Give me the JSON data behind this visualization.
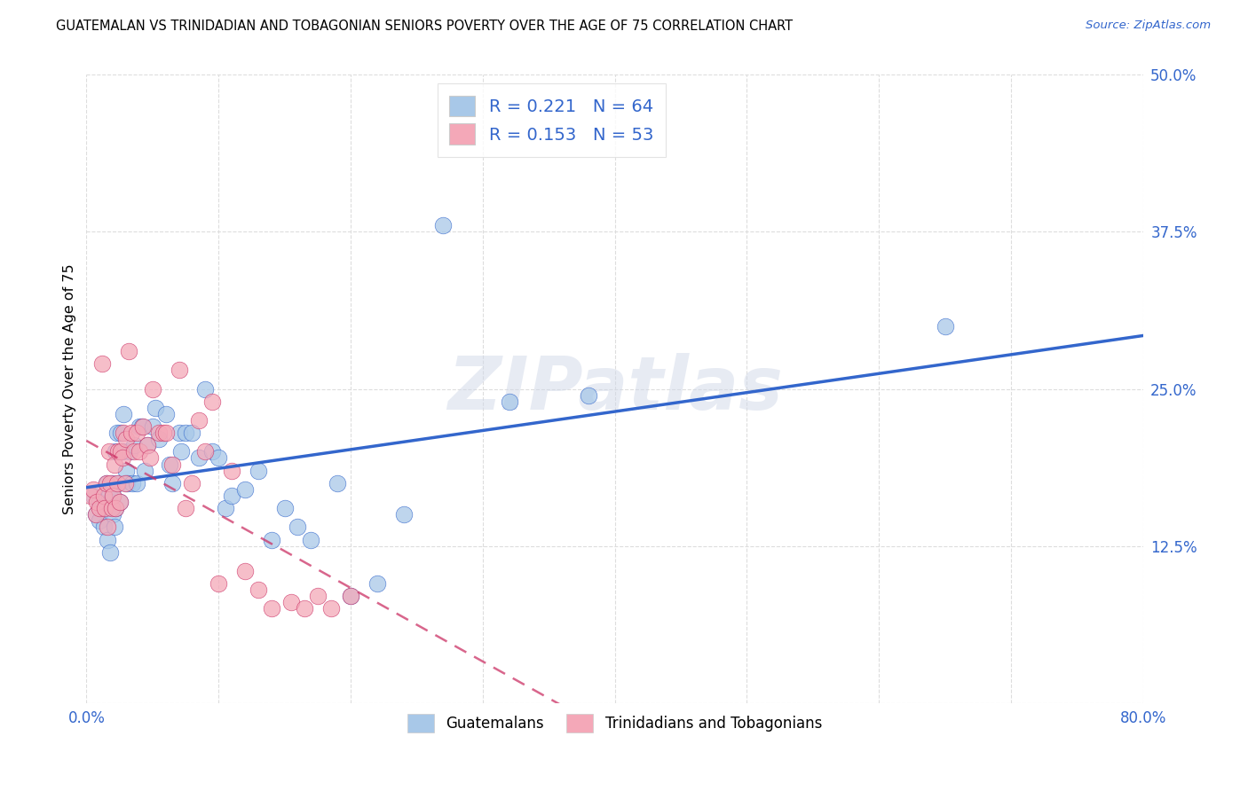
{
  "title": "GUATEMALAN VS TRINIDADIAN AND TOBAGONIAN SENIORS POVERTY OVER THE AGE OF 75 CORRELATION CHART",
  "source": "Source: ZipAtlas.com",
  "ylabel": "Seniors Poverty Over the Age of 75",
  "xlim": [
    0.0,
    0.8
  ],
  "ylim": [
    0.0,
    0.5
  ],
  "yticks": [
    0.0,
    0.125,
    0.25,
    0.375,
    0.5
  ],
  "yticklabels": [
    "",
    "12.5%",
    "25.0%",
    "37.5%",
    "50.0%"
  ],
  "xticks": [
    0.0,
    0.1,
    0.2,
    0.3,
    0.4,
    0.5,
    0.6,
    0.7,
    0.8
  ],
  "xticklabels": [
    "0.0%",
    "",
    "",
    "",
    "",
    "",
    "",
    "",
    "80.0%"
  ],
  "legend_label1": "Guatemalans",
  "legend_label2": "Trinidadians and Tobagonians",
  "r1": 0.221,
  "n1": 64,
  "r2": 0.153,
  "n2": 53,
  "color1": "#a8c8e8",
  "color2": "#f4a8b8",
  "color1_line": "#3366cc",
  "color2_line": "#cc3366",
  "watermark": "ZIPatlas",
  "blue_scatter_x": [
    0.005,
    0.007,
    0.01,
    0.01,
    0.012,
    0.013,
    0.015,
    0.016,
    0.016,
    0.017,
    0.018,
    0.018,
    0.019,
    0.02,
    0.02,
    0.021,
    0.022,
    0.022,
    0.023,
    0.024,
    0.025,
    0.026,
    0.027,
    0.028,
    0.03,
    0.031,
    0.033,
    0.035,
    0.036,
    0.038,
    0.04,
    0.042,
    0.044,
    0.046,
    0.05,
    0.052,
    0.055,
    0.06,
    0.063,
    0.065,
    0.07,
    0.072,
    0.075,
    0.08,
    0.085,
    0.09,
    0.095,
    0.1,
    0.105,
    0.11,
    0.12,
    0.13,
    0.14,
    0.15,
    0.16,
    0.17,
    0.19,
    0.2,
    0.22,
    0.24,
    0.27,
    0.32,
    0.38,
    0.65
  ],
  "blue_scatter_y": [
    0.165,
    0.15,
    0.16,
    0.145,
    0.155,
    0.14,
    0.175,
    0.155,
    0.13,
    0.165,
    0.12,
    0.16,
    0.175,
    0.15,
    0.165,
    0.14,
    0.2,
    0.155,
    0.215,
    0.175,
    0.16,
    0.215,
    0.2,
    0.23,
    0.185,
    0.175,
    0.2,
    0.175,
    0.205,
    0.175,
    0.22,
    0.22,
    0.185,
    0.205,
    0.22,
    0.235,
    0.21,
    0.23,
    0.19,
    0.175,
    0.215,
    0.2,
    0.215,
    0.215,
    0.195,
    0.25,
    0.2,
    0.195,
    0.155,
    0.165,
    0.17,
    0.185,
    0.13,
    0.155,
    0.14,
    0.13,
    0.175,
    0.085,
    0.095,
    0.15,
    0.38,
    0.24,
    0.245,
    0.3
  ],
  "pink_scatter_x": [
    0.003,
    0.005,
    0.007,
    0.008,
    0.01,
    0.012,
    0.013,
    0.014,
    0.015,
    0.016,
    0.017,
    0.018,
    0.019,
    0.02,
    0.021,
    0.022,
    0.023,
    0.024,
    0.025,
    0.026,
    0.027,
    0.028,
    0.029,
    0.03,
    0.032,
    0.034,
    0.036,
    0.038,
    0.04,
    0.043,
    0.046,
    0.048,
    0.05,
    0.055,
    0.058,
    0.06,
    0.065,
    0.07,
    0.075,
    0.08,
    0.085,
    0.09,
    0.095,
    0.1,
    0.11,
    0.12,
    0.13,
    0.14,
    0.155,
    0.165,
    0.175,
    0.185,
    0.2
  ],
  "pink_scatter_y": [
    0.165,
    0.17,
    0.15,
    0.16,
    0.155,
    0.27,
    0.165,
    0.155,
    0.175,
    0.14,
    0.2,
    0.175,
    0.155,
    0.165,
    0.19,
    0.155,
    0.175,
    0.2,
    0.16,
    0.2,
    0.195,
    0.215,
    0.175,
    0.21,
    0.28,
    0.215,
    0.2,
    0.215,
    0.2,
    0.22,
    0.205,
    0.195,
    0.25,
    0.215,
    0.215,
    0.215,
    0.19,
    0.265,
    0.155,
    0.175,
    0.225,
    0.2,
    0.24,
    0.095,
    0.185,
    0.105,
    0.09,
    0.075,
    0.08,
    0.075,
    0.085,
    0.075,
    0.085
  ]
}
